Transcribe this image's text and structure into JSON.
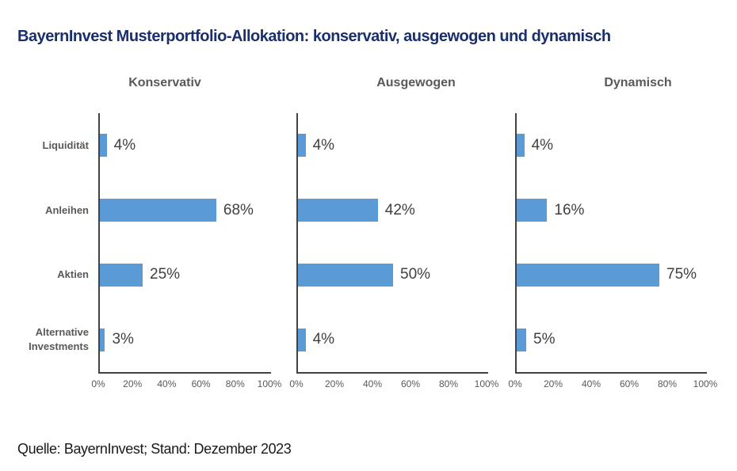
{
  "header": {
    "title": "BayernInvest Musterportfolio-Allokation: konservativ, ausgewogen und dynamisch"
  },
  "footer": {
    "source": "Quelle: BayernInvest; Stand: Dezember 2023"
  },
  "colors": {
    "title_navy": "#1A2F6E",
    "bar_blue": "#5B9BD5",
    "chart_text_gray": "#595959",
    "value_text_gray": "#404040",
    "axis_gray": "#424242"
  },
  "chart_data": [
    {
      "type": "bar",
      "orientation": "horizontal",
      "title": "Konservativ",
      "categories": [
        "Liquidität",
        "Anleihen",
        "Aktien",
        "Alternative Investments"
      ],
      "values": [
        4,
        68,
        25,
        3
      ],
      "value_labels": [
        "4%",
        "68%",
        "25%",
        "3%"
      ],
      "xlim": [
        0,
        100
      ],
      "xticks": [
        "0%",
        "20%",
        "40%",
        "60%",
        "80%",
        "100%"
      ],
      "show_category_labels": true,
      "grid": false,
      "legend": false
    },
    {
      "type": "bar",
      "orientation": "horizontal",
      "title": "Ausgewogen",
      "categories": [
        "Liquidität",
        "Anleihen",
        "Aktien",
        "Alternative Investments"
      ],
      "values": [
        4,
        42,
        50,
        4
      ],
      "value_labels": [
        "4%",
        "42%",
        "50%",
        "4%"
      ],
      "xlim": [
        0,
        100
      ],
      "xticks": [
        "0%",
        "20%",
        "40%",
        "60%",
        "80%",
        "100%"
      ],
      "show_category_labels": false,
      "grid": false,
      "legend": false
    },
    {
      "type": "bar",
      "orientation": "horizontal",
      "title": "Dynamisch",
      "categories": [
        "Liquidität",
        "Anleihen",
        "Aktien",
        "Alternative Investments"
      ],
      "values": [
        4,
        16,
        75,
        5
      ],
      "value_labels": [
        "4%",
        "16%",
        "75%",
        "5%"
      ],
      "xlim": [
        0,
        100
      ],
      "xticks": [
        "0%",
        "20%",
        "40%",
        "60%",
        "80%",
        "100%"
      ],
      "show_category_labels": false,
      "grid": false,
      "legend": false
    }
  ]
}
